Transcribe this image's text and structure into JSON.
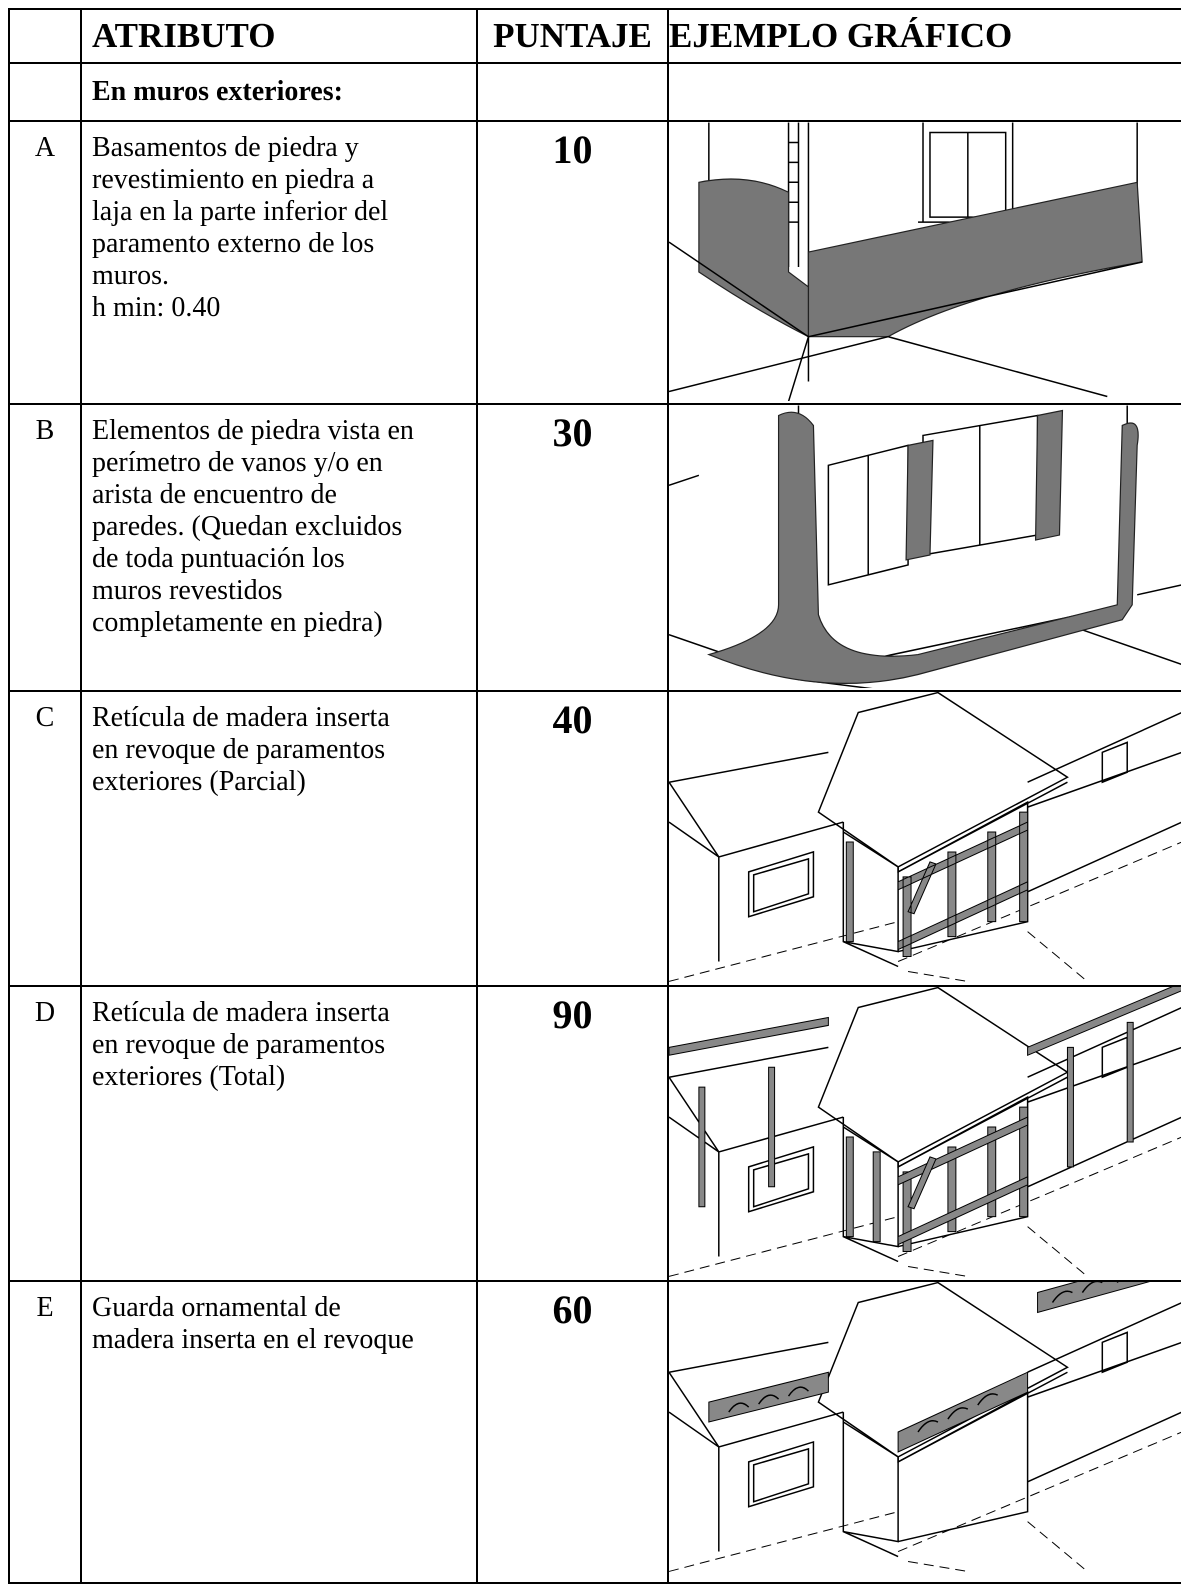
{
  "table": {
    "header": [
      "ATRIBUTO",
      "PUNTAJE",
      "EJEMPLO GRÁFICO"
    ],
    "section": "En muros exteriores:",
    "rows": [
      {
        "letter": "A",
        "lines": [
          "Basamentos de piedra y",
          "revestimiento en piedra a",
          "laja en la parte inferior del",
          "paramento externo de los",
          "muros.",
          "h min: 0.40"
        ],
        "score": 10
      },
      {
        "letter": "B",
        "lines": [
          "Elementos de piedra vista en",
          "perímetro de vanos y/o en",
          "arista de encuentro de",
          "paredes. (Quedan excluidos",
          "de toda puntuación los",
          "muros revestidos",
          "completamente en piedra)"
        ],
        "score": 30
      },
      {
        "letter": "C",
        "lines": [
          "Retícula de madera inserta",
          "en revoque de paramentos",
          "exteriores (Parcial)"
        ],
        "score": 40
      },
      {
        "letter": "D",
        "lines": [
          "Retícula de madera inserta",
          "en revoque de paramentos",
          "exteriores (Total)"
        ],
        "score": 90
      },
      {
        "letter": "E",
        "lines": [
          "Guarda ornamental de",
          "madera inserta en el revoque"
        ],
        "score": 60
      }
    ]
  }
}
